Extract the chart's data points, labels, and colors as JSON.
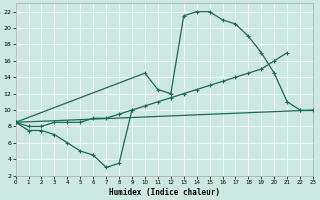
{
  "xlabel": "Humidex (Indice chaleur)",
  "xlim": [
    0,
    23
  ],
  "ylim": [
    2,
    23
  ],
  "xticks": [
    0,
    1,
    2,
    3,
    4,
    5,
    6,
    7,
    8,
    9,
    10,
    11,
    12,
    13,
    14,
    15,
    16,
    17,
    18,
    19,
    20,
    21,
    22,
    23
  ],
  "yticks": [
    2,
    4,
    6,
    8,
    10,
    12,
    14,
    16,
    18,
    20,
    22
  ],
  "bg_color": "#cde8e0",
  "line_color": "#1a6b5a",
  "line1_x": [
    0,
    1,
    2,
    3,
    4,
    5,
    6,
    7,
    8,
    9
  ],
  "line1_y": [
    8.5,
    7.5,
    7.5,
    7.0,
    6.0,
    5.0,
    4.5,
    3.0,
    3.5,
    10.0
  ],
  "line2_x": [
    0,
    10,
    11,
    12,
    13,
    14,
    15,
    16,
    17,
    18,
    19,
    20,
    21,
    22
  ],
  "line2_y": [
    8.5,
    14.5,
    12.5,
    12.0,
    21.5,
    22.0,
    22.0,
    21.0,
    20.5,
    19.0,
    17.0,
    14.5,
    11.0,
    10.0
  ],
  "line3_x": [
    0,
    1,
    2,
    3,
    4,
    5,
    6,
    7,
    8,
    9,
    10,
    11,
    12,
    13,
    14,
    15,
    16,
    17,
    18,
    19,
    20,
    21
  ],
  "line3_y": [
    8.5,
    8.0,
    8.0,
    8.5,
    8.5,
    8.5,
    9.0,
    9.0,
    9.5,
    10.0,
    10.5,
    11.0,
    11.5,
    12.0,
    12.5,
    13.0,
    13.5,
    14.0,
    14.5,
    15.0,
    16.0,
    17.0
  ],
  "line4_x": [
    0,
    23
  ],
  "line4_y": [
    8.5,
    10.0
  ]
}
